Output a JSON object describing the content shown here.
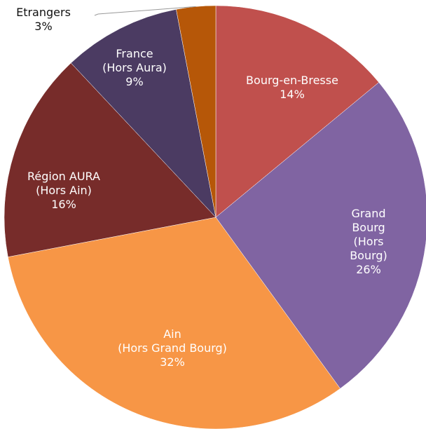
{
  "chart_data": {
    "type": "pie",
    "categories": [
      "Bourg-en-Bresse",
      "Grand Bourg\n(Hors Bourg)",
      "Ain\n(Hors Grand Bourg)",
      "Région AURA\n(Hors Ain)",
      "France\n(Hors Aura)",
      "Etrangers"
    ],
    "values": [
      14,
      26,
      32,
      16,
      9,
      3
    ],
    "value_labels": [
      "14%",
      "26%",
      "32%",
      "16%",
      "9%",
      "3%"
    ],
    "colors": [
      "#c0504d",
      "#8064a2",
      "#f79646",
      "#772c2a",
      "#4b3b62",
      "#b65708"
    ]
  }
}
